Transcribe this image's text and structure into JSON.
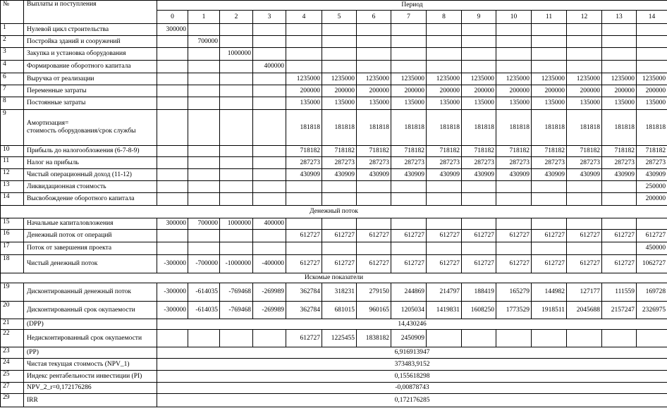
{
  "header": {
    "no": "№",
    "label": "Выплаты и поступления",
    "period": "Период",
    "periods": [
      "0",
      "1",
      "2",
      "3",
      "4",
      "5",
      "6",
      "7",
      "8",
      "9",
      "10",
      "11",
      "12",
      "13",
      "14"
    ]
  },
  "rows": [
    {
      "no": "1",
      "label": "Нулевой цикл строительства",
      "cells": [
        300000,
        null,
        null,
        null,
        null,
        null,
        null,
        null,
        null,
        null,
        null,
        null,
        null,
        null,
        null
      ]
    },
    {
      "no": "2",
      "label": "Постройка зданий и сооружений",
      "cells": [
        null,
        700000,
        null,
        null,
        null,
        null,
        null,
        null,
        null,
        null,
        null,
        null,
        null,
        null,
        null
      ]
    },
    {
      "no": "3",
      "label": "Закупка и установка оборудования",
      "cells": [
        null,
        null,
        1000000,
        null,
        null,
        null,
        null,
        null,
        null,
        null,
        null,
        null,
        null,
        null,
        null
      ]
    },
    {
      "no": "4",
      "label": "Формирование оборотного капитала",
      "cells": [
        null,
        null,
        null,
        400000,
        null,
        null,
        null,
        null,
        null,
        null,
        null,
        null,
        null,
        null,
        null
      ]
    },
    {
      "no": "6",
      "label": "Выручка от реализации",
      "cells": [
        null,
        null,
        null,
        null,
        1235000,
        1235000,
        1235000,
        1235000,
        1235000,
        1235000,
        1235000,
        1235000,
        1235000,
        1235000,
        1235000
      ]
    },
    {
      "no": "7",
      "label": "Переменные затраты",
      "cells": [
        null,
        null,
        null,
        null,
        200000,
        200000,
        200000,
        200000,
        200000,
        200000,
        200000,
        200000,
        200000,
        200000,
        200000
      ]
    },
    {
      "no": "8",
      "label": "Постоянные затраты",
      "cells": [
        null,
        null,
        null,
        null,
        135000,
        135000,
        135000,
        135000,
        135000,
        135000,
        135000,
        135000,
        135000,
        135000,
        135000
      ]
    },
    {
      "no": "9",
      "label": "Амортизация=\nстоимость оборудования/срок службы",
      "cells": [
        null,
        null,
        null,
        null,
        181818,
        181818,
        181818,
        181818,
        181818,
        181818,
        181818,
        181818,
        181818,
        181818,
        181818
      ]
    },
    {
      "no": "10",
      "label": "Прибыль до налогообложения (6-7-8-9)",
      "cells": [
        null,
        null,
        null,
        null,
        718182,
        718182,
        718182,
        718182,
        718182,
        718182,
        718182,
        718182,
        718182,
        718182,
        718182
      ]
    },
    {
      "no": "11",
      "label": "Налог на прибыль",
      "cells": [
        null,
        null,
        null,
        null,
        287273,
        287273,
        287273,
        287273,
        287273,
        287273,
        287273,
        287273,
        287273,
        287273,
        287273
      ]
    },
    {
      "no": "12",
      "label": "Чистый операционный доход (11-12)",
      "cells": [
        null,
        null,
        null,
        null,
        430909,
        430909,
        430909,
        430909,
        430909,
        430909,
        430909,
        430909,
        430909,
        430909,
        430909
      ]
    },
    {
      "no": "13",
      "label": "Ликвидационная стоимость",
      "cells": [
        null,
        null,
        null,
        null,
        null,
        null,
        null,
        null,
        null,
        null,
        null,
        null,
        null,
        null,
        250000
      ]
    },
    {
      "no": "14",
      "label": "Высвобождение оборотного капитала",
      "cells": [
        null,
        null,
        null,
        null,
        null,
        null,
        null,
        null,
        null,
        null,
        null,
        null,
        null,
        null,
        200000
      ]
    },
    {
      "section": "Денежный поток"
    },
    {
      "no": "15",
      "label": "Начальные капиталовложения",
      "cells": [
        300000,
        700000,
        1000000,
        400000,
        null,
        null,
        null,
        null,
        null,
        null,
        null,
        null,
        null,
        null,
        null
      ]
    },
    {
      "no": "16",
      "label": "Денежный поток от операций",
      "cells": [
        null,
        null,
        null,
        null,
        612727,
        612727,
        612727,
        612727,
        612727,
        612727,
        612727,
        612727,
        612727,
        612727,
        612727
      ]
    },
    {
      "no": "17",
      "label": "Поток от завершения проекта",
      "cells": [
        null,
        null,
        null,
        null,
        null,
        null,
        null,
        null,
        null,
        null,
        null,
        null,
        null,
        null,
        450000
      ]
    },
    {
      "no": "18",
      "label": "Чистый денежный поток",
      "cells": [
        -300000,
        -700000,
        -1000000,
        -400000,
        612727,
        612727,
        612727,
        612727,
        612727,
        612727,
        612727,
        612727,
        612727,
        612727,
        1062727
      ]
    },
    {
      "section": "Искомые показатели"
    },
    {
      "no": "19",
      "label": "Дисконтированный денежный поток",
      "cells": [
        -300000,
        -614035,
        -769468,
        -269989,
        362784,
        318231,
        279150,
        244869,
        214797,
        188419,
        165279,
        144982,
        127177,
        111559,
        169728
      ]
    },
    {
      "no": "20",
      "label": "Дисконтированный срок окупаемости",
      "cells": [
        -300000,
        -614035,
        -769468,
        -269989,
        362784,
        681015,
        960165,
        1205034,
        1419831,
        1608250,
        1773529,
        1918511,
        2045688,
        2157247,
        2326975
      ]
    },
    {
      "no": "21",
      "label": "(DPP)",
      "value": "14,430246"
    },
    {
      "no": "22",
      "label": "Недисконтированный срок окупаемости",
      "cells": [
        null,
        null,
        null,
        null,
        612727,
        1225455,
        1838182,
        2450909,
        null,
        null,
        null,
        null,
        null,
        null,
        null
      ]
    },
    {
      "no": "23",
      "label": "(PP)",
      "value": "6,916913947"
    },
    {
      "no": "24",
      "label": "Чистая текущая стоимость (NPV_1)",
      "value": "373483,9152"
    },
    {
      "no": "25",
      "label": "Индекс рентабельности инвестиции (PI)",
      "value": "0,155618298"
    },
    {
      "no": "27",
      "label": "NPV_2_r=0,172176286",
      "value": "-0,00878743"
    },
    {
      "no": "29",
      "label": "IRR",
      "value": "0,172176285"
    }
  ]
}
